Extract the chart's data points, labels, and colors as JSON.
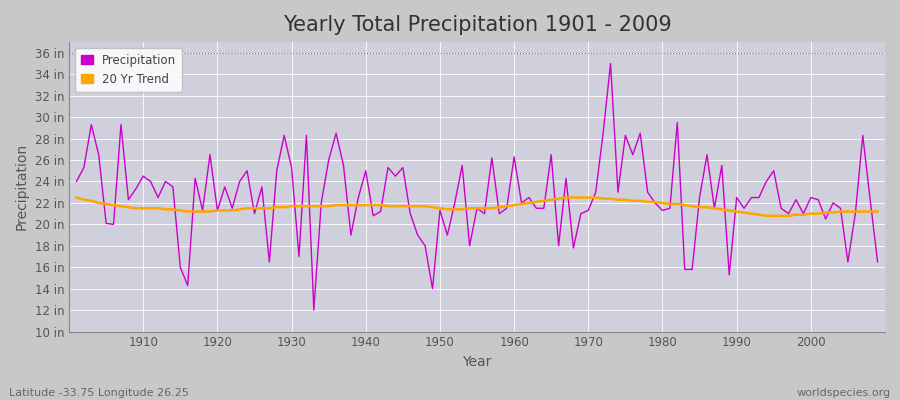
{
  "title": "Yearly Total Precipitation 1901 - 2009",
  "xlabel": "Year",
  "ylabel": "Precipitation",
  "lat_lon_label": "Latitude -33.75 Longitude 26.25",
  "source_label": "worldspecies.org",
  "years": [
    1901,
    1902,
    1903,
    1904,
    1905,
    1906,
    1907,
    1908,
    1909,
    1910,
    1911,
    1912,
    1913,
    1914,
    1915,
    1916,
    1917,
    1918,
    1919,
    1920,
    1921,
    1922,
    1923,
    1924,
    1925,
    1926,
    1927,
    1928,
    1929,
    1930,
    1931,
    1932,
    1933,
    1934,
    1935,
    1936,
    1937,
    1938,
    1939,
    1940,
    1941,
    1942,
    1943,
    1944,
    1945,
    1946,
    1947,
    1948,
    1949,
    1950,
    1951,
    1952,
    1953,
    1954,
    1955,
    1956,
    1957,
    1958,
    1959,
    1960,
    1961,
    1962,
    1963,
    1964,
    1965,
    1966,
    1967,
    1968,
    1969,
    1970,
    1971,
    1972,
    1973,
    1974,
    1975,
    1976,
    1977,
    1978,
    1979,
    1980,
    1981,
    1982,
    1983,
    1984,
    1985,
    1986,
    1987,
    1988,
    1989,
    1990,
    1991,
    1992,
    1993,
    1994,
    1995,
    1996,
    1997,
    1998,
    1999,
    2000,
    2001,
    2002,
    2003,
    2004,
    2005,
    2006,
    2007,
    2008,
    2009
  ],
  "precip": [
    24.0,
    25.3,
    29.3,
    26.5,
    20.1,
    20.0,
    29.3,
    22.3,
    23.3,
    24.5,
    24.0,
    22.5,
    24.0,
    23.5,
    16.0,
    14.3,
    24.3,
    21.3,
    26.5,
    21.3,
    23.5,
    21.5,
    24.0,
    25.0,
    21.0,
    23.5,
    16.5,
    25.0,
    28.3,
    25.3,
    17.0,
    28.3,
    12.0,
    22.0,
    26.0,
    28.5,
    25.5,
    19.0,
    22.5,
    25.0,
    20.8,
    21.2,
    25.3,
    24.5,
    25.3,
    21.0,
    19.0,
    18.0,
    14.0,
    21.3,
    19.0,
    22.0,
    25.5,
    18.0,
    21.5,
    21.0,
    26.2,
    21.0,
    21.5,
    26.3,
    22.0,
    22.5,
    21.5,
    21.5,
    26.5,
    18.0,
    24.3,
    17.8,
    21.0,
    21.3,
    23.0,
    28.5,
    35.0,
    23.0,
    28.3,
    26.5,
    28.5,
    23.0,
    22.0,
    21.3,
    21.5,
    29.5,
    15.8,
    15.8,
    22.5,
    26.5,
    21.5,
    25.5,
    15.3,
    22.5,
    21.5,
    22.5,
    22.5,
    24.0,
    25.0,
    21.5,
    21.0,
    22.3,
    21.0,
    22.5,
    22.3,
    20.5,
    22.0,
    21.5,
    16.5,
    21.0,
    28.3,
    22.3,
    16.5
  ],
  "trend": [
    22.5,
    22.3,
    22.2,
    22.0,
    21.9,
    21.8,
    21.7,
    21.6,
    21.5,
    21.5,
    21.5,
    21.5,
    21.4,
    21.4,
    21.3,
    21.2,
    21.2,
    21.2,
    21.2,
    21.3,
    21.3,
    21.3,
    21.4,
    21.5,
    21.5,
    21.5,
    21.5,
    21.6,
    21.6,
    21.7,
    21.7,
    21.7,
    21.7,
    21.7,
    21.7,
    21.8,
    21.8,
    21.8,
    21.8,
    21.8,
    21.8,
    21.8,
    21.7,
    21.7,
    21.7,
    21.7,
    21.7,
    21.7,
    21.6,
    21.5,
    21.4,
    21.4,
    21.4,
    21.5,
    21.5,
    21.5,
    21.5,
    21.6,
    21.7,
    21.8,
    21.9,
    22.0,
    22.1,
    22.2,
    22.3,
    22.4,
    22.5,
    22.5,
    22.5,
    22.5,
    22.5,
    22.4,
    22.4,
    22.3,
    22.3,
    22.2,
    22.2,
    22.1,
    22.1,
    22.0,
    21.9,
    21.9,
    21.8,
    21.7,
    21.6,
    21.6,
    21.5,
    21.4,
    21.3,
    21.2,
    21.1,
    21.0,
    20.9,
    20.8,
    20.8,
    20.8,
    20.8,
    20.9,
    20.9,
    21.0,
    21.0,
    21.1,
    21.1,
    21.2,
    21.2,
    21.2,
    21.2,
    21.2,
    21.2
  ],
  "precip_color": "#cc00cc",
  "trend_color": "#FFA500",
  "fig_bg_color": "#c8c8c8",
  "plot_bg_color": "#d0d0dc",
  "grid_color": "#b8b8c8",
  "ylim": [
    10,
    37
  ],
  "yticks": [
    10,
    12,
    14,
    16,
    18,
    20,
    22,
    24,
    26,
    28,
    30,
    32,
    34,
    36
  ],
  "xlim": [
    1900,
    2010
  ],
  "xticks": [
    1910,
    1920,
    1930,
    1940,
    1950,
    1960,
    1970,
    1980,
    1990,
    2000
  ],
  "top_line_y": 36,
  "title_fontsize": 15,
  "axis_label_fontsize": 10,
  "tick_fontsize": 8.5,
  "legend_fontsize": 8.5,
  "tick_color": "#555555",
  "title_color": "#333333",
  "label_color": "#555555",
  "annotation_color": "#666666"
}
